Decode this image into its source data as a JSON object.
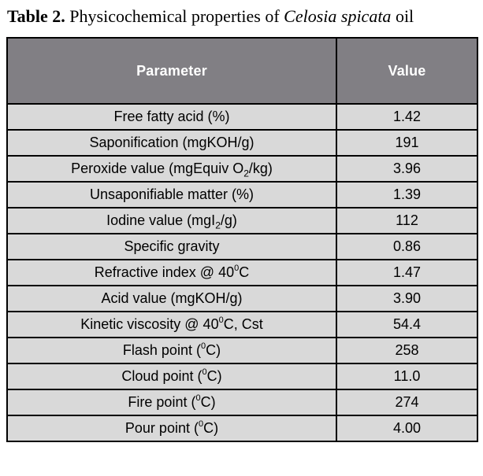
{
  "title": {
    "label": "Table 2.",
    "mid": " Physicochemical properties of ",
    "species": "Celosia spicata",
    "tail": " oil"
  },
  "table": {
    "columns": [
      "Parameter",
      "Value"
    ],
    "rows": [
      {
        "parameter": "Free fatty acid (%)",
        "value": "1.42"
      },
      {
        "parameter": "Saponification (mgKOH/g)",
        "value": "191"
      },
      {
        "parameter": "Peroxide value (mgEquiv O~2~/kg)",
        "value": "3.96"
      },
      {
        "parameter": "Unsaponifiable matter (%)",
        "value": "1.39"
      },
      {
        "parameter": "Iodine value (mgI~2~/g)",
        "value": "112"
      },
      {
        "parameter": "Specific gravity",
        "value": "0.86"
      },
      {
        "parameter": "Refractive index @ 40^0^C",
        "value": "1.47"
      },
      {
        "parameter": "Acid value (mgKOH/g)",
        "value": "3.90"
      },
      {
        "parameter": "Kinetic viscosity @ 40^0^C, Cst",
        "value": "54.4"
      },
      {
        "parameter": "Flash point (^0^C)",
        "value": "258"
      },
      {
        "parameter": "Cloud point (^0^C)",
        "value": "11.0"
      },
      {
        "parameter": "Fire point (^0^C)",
        "value": "274"
      },
      {
        "parameter": "Pour point (^0^C)",
        "value": "4.00"
      }
    ],
    "notation": {
      "subscript_marker": "~",
      "superscript_marker": "^"
    }
  },
  "colors": {
    "header_bg": "#817f84",
    "header_text": "#ffffff",
    "row_bg": "#d9d9d9",
    "border": "#000000",
    "page_bg": "#ffffff"
  }
}
